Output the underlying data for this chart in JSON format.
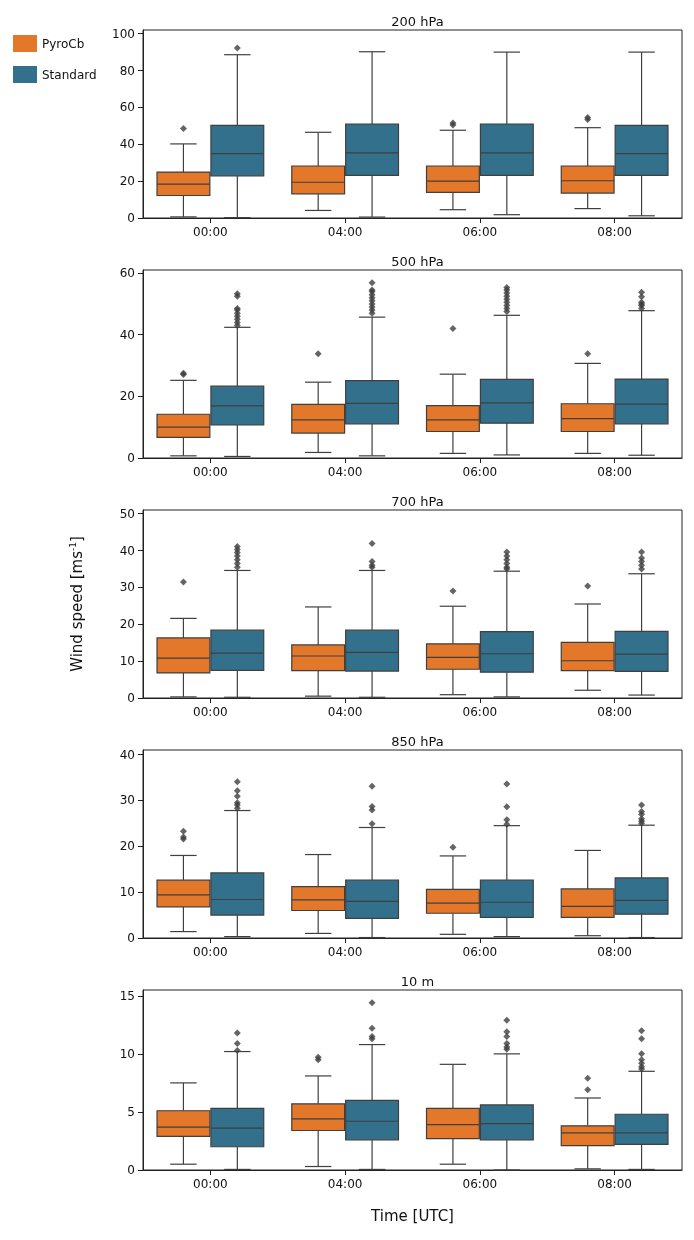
{
  "chart_data": [
    {
      "type": "box",
      "title": "200 hPa",
      "categories": [
        "00:00",
        "04:00",
        "06:00",
        "08:00"
      ],
      "ylim": [
        0,
        102
      ],
      "yticks": [
        0,
        20,
        40,
        60,
        80,
        100
      ],
      "legend": "top left",
      "series": [
        {
          "name": "PyroCb",
          "color": "#e3782a",
          "boxes": [
            {
              "low": 0.6,
              "q1": 12.2,
              "median": 18.4,
              "q3": 24.9,
              "high": 40.2,
              "outliers": [
                48.6
              ]
            },
            {
              "low": 4.1,
              "q1": 13.1,
              "median": 19.4,
              "q3": 28.2,
              "high": 46.5
            },
            {
              "low": 4.5,
              "q1": 13.9,
              "median": 20,
              "q3": 28.2,
              "high": 47.6,
              "outliers": [
                50.5,
                51.5
              ]
            },
            {
              "low": 5.1,
              "q1": 13.5,
              "median": 20.2,
              "q3": 28.2,
              "high": 49,
              "outliers": [
                53.5,
                54.5
              ]
            }
          ]
        },
        {
          "name": "Standard",
          "color": "#33708c",
          "boxes": [
            {
              "low": 0.2,
              "q1": 22.9,
              "median": 34.9,
              "q3": 50.2,
              "high": 88.6,
              "outliers": [
                92.2
              ]
            },
            {
              "low": 0.5,
              "q1": 23.1,
              "median": 35.3,
              "q3": 51,
              "high": 90.2
            },
            {
              "low": 1.8,
              "q1": 23.1,
              "median": 35.3,
              "q3": 51,
              "high": 90
            },
            {
              "low": 1.2,
              "q1": 23.1,
              "median": 34.9,
              "q3": 50.2,
              "high": 90
            }
          ]
        }
      ]
    },
    {
      "type": "box",
      "title": "500 hPa",
      "categories": [
        "00:00",
        "04:00",
        "06:00",
        "08:00"
      ],
      "ylim": [
        0,
        61
      ],
      "yticks": [
        0,
        20,
        40,
        60
      ],
      "series": [
        {
          "color": "#e3782a",
          "boxes": [
            {
              "low": 0.7,
              "q1": 6.7,
              "median": 10,
              "q3": 14.2,
              "high": 25.2,
              "outliers": [
                27.1,
                27.5
              ]
            },
            {
              "low": 1.8,
              "q1": 8.1,
              "median": 12.4,
              "q3": 17.4,
              "high": 24.6,
              "outliers": [
                33.8
              ]
            },
            {
              "low": 1.5,
              "q1": 8.6,
              "median": 12.4,
              "q3": 17,
              "high": 27.2,
              "outliers": [
                42
              ]
            },
            {
              "low": 1.5,
              "q1": 8.6,
              "median": 12.8,
              "q3": 17.6,
              "high": 30.7,
              "outliers": [
                33.8
              ]
            }
          ]
        },
        {
          "color": "#33708c",
          "boxes": [
            {
              "low": 0.5,
              "q1": 10.7,
              "median": 16.9,
              "q3": 23.3,
              "high": 42.4,
              "outliers": [
                43,
                44,
                45,
                46,
                47,
                48,
                48.5,
                52.5,
                53.3
              ]
            },
            {
              "low": 0.7,
              "q1": 11.1,
              "median": 17.7,
              "q3": 25.1,
              "high": 45.7,
              "outliers": [
                47,
                48,
                49,
                50,
                51,
                52,
                53,
                54,
                54.5,
                56.9
              ]
            },
            {
              "low": 1,
              "q1": 11.3,
              "median": 17.9,
              "q3": 25.5,
              "high": 46.3,
              "outliers": [
                47.5,
                48.5,
                49.5,
                50.5,
                51.5,
                52.5,
                53.5,
                54.5,
                55.3
              ]
            },
            {
              "low": 0.9,
              "q1": 11.1,
              "median": 17.5,
              "q3": 25.6,
              "high": 47.8,
              "outliers": [
                48.5,
                49.5,
                50,
                50.5,
                52.3,
                53.8
              ]
            }
          ]
        }
      ]
    },
    {
      "type": "box",
      "title": "700 hPa",
      "categories": [
        "00:00",
        "04:00",
        "06:00",
        "08:00"
      ],
      "ylim": [
        0,
        51
      ],
      "yticks": [
        0,
        10,
        20,
        30,
        40,
        50
      ],
      "ylabel": "Wind speed [ms$^{-1}$]",
      "series": [
        {
          "color": "#e3782a",
          "boxes": [
            {
              "low": 0.3,
              "q1": 6.8,
              "median": 10.8,
              "q3": 16.3,
              "high": 21.6,
              "outliers": [
                31.5
              ]
            },
            {
              "low": 0.5,
              "q1": 7.4,
              "median": 11.4,
              "q3": 14.4,
              "high": 24.7
            },
            {
              "low": 0.9,
              "q1": 7.8,
              "median": 11,
              "q3": 14.7,
              "high": 24.9,
              "outliers": [
                29
              ]
            },
            {
              "low": 2.1,
              "q1": 7.4,
              "median": 10.1,
              "q3": 15.1,
              "high": 25.5,
              "outliers": [
                30.4
              ]
            }
          ]
        },
        {
          "color": "#33708c",
          "boxes": [
            {
              "low": 0.2,
              "q1": 7.5,
              "median": 12.2,
              "q3": 18.4,
              "high": 34.6,
              "outliers": [
                35.5,
                36.5,
                37.5,
                38.5,
                39.5,
                40.3,
                41.1
              ]
            },
            {
              "low": 0.2,
              "q1": 7.3,
              "median": 12.4,
              "q3": 18.4,
              "high": 34.6,
              "outliers": [
                35.5,
                36,
                37,
                41.9
              ]
            },
            {
              "low": 0.3,
              "q1": 7,
              "median": 12,
              "q3": 18,
              "high": 34.4,
              "outliers": [
                35,
                35.5,
                36.5,
                37.5,
                38.5,
                39.6
              ]
            },
            {
              "low": 0.8,
              "q1": 7.2,
              "median": 11.9,
              "q3": 18.1,
              "high": 33.7,
              "outliers": [
                35,
                36,
                37,
                38,
                39.6
              ]
            }
          ]
        }
      ]
    },
    {
      "type": "box",
      "title": "850 hPa",
      "categories": [
        "00:00",
        "04:00",
        "06:00",
        "08:00"
      ],
      "ylim": [
        0,
        41
      ],
      "yticks": [
        0,
        10,
        20,
        30,
        40
      ],
      "series": [
        {
          "color": "#e3782a",
          "boxes": [
            {
              "low": 1.4,
              "q1": 6.8,
              "median": 9.4,
              "q3": 12.6,
              "high": 18,
              "outliers": [
                21.6,
                22,
                23.3
              ]
            },
            {
              "low": 1,
              "q1": 6,
              "median": 8.3,
              "q3": 11.2,
              "high": 18.2
            },
            {
              "low": 0.8,
              "q1": 5.4,
              "median": 7.6,
              "q3": 10.6,
              "high": 17.9,
              "outliers": [
                19.8
              ]
            },
            {
              "low": 0.5,
              "q1": 4.5,
              "median": 6.9,
              "q3": 10.7,
              "high": 19.1
            }
          ]
        },
        {
          "color": "#33708c",
          "boxes": [
            {
              "low": 0.3,
              "q1": 5,
              "median": 8.4,
              "q3": 14.2,
              "high": 27.8,
              "outliers": [
                28.3,
                29,
                29.5,
                30.9,
                32.1,
                34.1
              ]
            },
            {
              "low": 0.1,
              "q1": 4.3,
              "median": 8,
              "q3": 12.6,
              "high": 24.1,
              "outliers": [
                24.9,
                27.9,
                28.7,
                33.1
              ]
            },
            {
              "low": 0.3,
              "q1": 4.5,
              "median": 7.8,
              "q3": 12.6,
              "high": 24.5,
              "outliers": [
                24.8,
                25.8,
                28.6,
                33.6
              ]
            },
            {
              "low": 0.1,
              "q1": 5.2,
              "median": 8.2,
              "q3": 13.1,
              "high": 24.6,
              "outliers": [
                25,
                25.5,
                26,
                27,
                27.6,
                29
              ]
            }
          ]
        }
      ]
    },
    {
      "type": "box",
      "title": "10 m",
      "categories": [
        "00:00",
        "04:00",
        "06:00",
        "08:00"
      ],
      "ylim": [
        0,
        15.5
      ],
      "yticks": [
        0,
        5,
        10,
        15
      ],
      "xlabel": "Time [UTC]",
      "series": [
        {
          "color": "#e3782a",
          "boxes": [
            {
              "low": 0.5,
              "q1": 2.9,
              "median": 3.7,
              "q3": 5.1,
              "high": 7.5
            },
            {
              "low": 0.3,
              "q1": 3.4,
              "median": 4.4,
              "q3": 5.7,
              "high": 8.1,
              "outliers": [
                9.5,
                9.7
              ]
            },
            {
              "low": 0.5,
              "q1": 2.7,
              "median": 3.9,
              "q3": 5.3,
              "high": 9.1
            },
            {
              "low": 0.1,
              "q1": 2.1,
              "median": 3.2,
              "q3": 3.8,
              "high": 6.2,
              "outliers": [
                6.9,
                7.9
              ]
            }
          ]
        },
        {
          "color": "#33708c",
          "boxes": [
            {
              "low": 0.05,
              "q1": 2,
              "median": 3.6,
              "q3": 5.3,
              "high": 10.2,
              "outliers": [
                10.3,
                10.9,
                11.8
              ]
            },
            {
              "low": 0.05,
              "q1": 2.6,
              "median": 4.2,
              "q3": 6,
              "high": 10.8,
              "outliers": [
                11.3,
                11.5,
                12.2,
                14.4
              ]
            },
            {
              "low": 0,
              "q1": 2.6,
              "median": 4,
              "q3": 5.6,
              "high": 10,
              "outliers": [
                10.4,
                10.6,
                10.9,
                11.5,
                11.9,
                12.9
              ]
            },
            {
              "low": 0.05,
              "q1": 2.2,
              "median": 3.2,
              "q3": 4.8,
              "high": 8.5,
              "outliers": [
                8.7,
                8.9,
                9.2,
                9.5,
                10,
                11.3,
                12
              ]
            }
          ]
        }
      ]
    }
  ]
}
